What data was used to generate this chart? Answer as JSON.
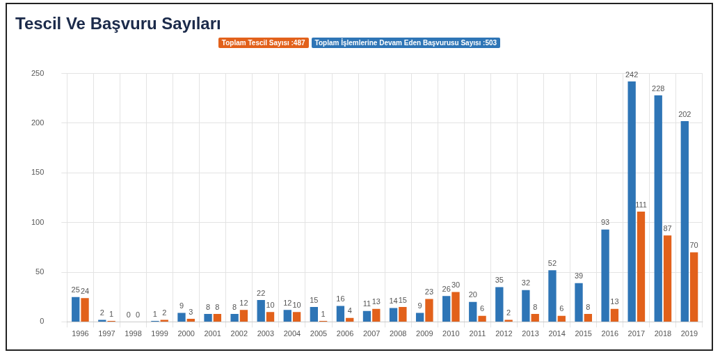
{
  "chart_data": {
    "type": "bar",
    "title": "Tescil Ve Başvuru Sayıları",
    "categories": [
      "1996",
      "1997",
      "1998",
      "1999",
      "2000",
      "2001",
      "2002",
      "2003",
      "2004",
      "2005",
      "2006",
      "2007",
      "2008",
      "2009",
      "2010",
      "2011",
      "2012",
      "2013",
      "2014",
      "2015",
      "2016",
      "2017",
      "2018",
      "2019"
    ],
    "series": [
      {
        "name": "Toplam İşlemlerine Devam Eden Başvurusu Sayısı :503",
        "color": "#2e75b6",
        "values": [
          25,
          2,
          0,
          1,
          9,
          8,
          8,
          22,
          12,
          15,
          16,
          11,
          14,
          9,
          26,
          20,
          35,
          32,
          52,
          39,
          93,
          242,
          228,
          202
        ]
      },
      {
        "name": "Toplam Tescil Sayısı :487",
        "color": "#e2611b",
        "values": [
          24,
          1,
          0,
          2,
          3,
          8,
          12,
          10,
          10,
          1,
          4,
          13,
          15,
          23,
          30,
          6,
          2,
          8,
          6,
          8,
          13,
          111,
          87,
          70
        ]
      }
    ],
    "ylim": [
      0,
      250
    ],
    "yticks": [
      0,
      50,
      100,
      150,
      200,
      250
    ],
    "grid": true,
    "legend": "top",
    "data_labels": true
  }
}
